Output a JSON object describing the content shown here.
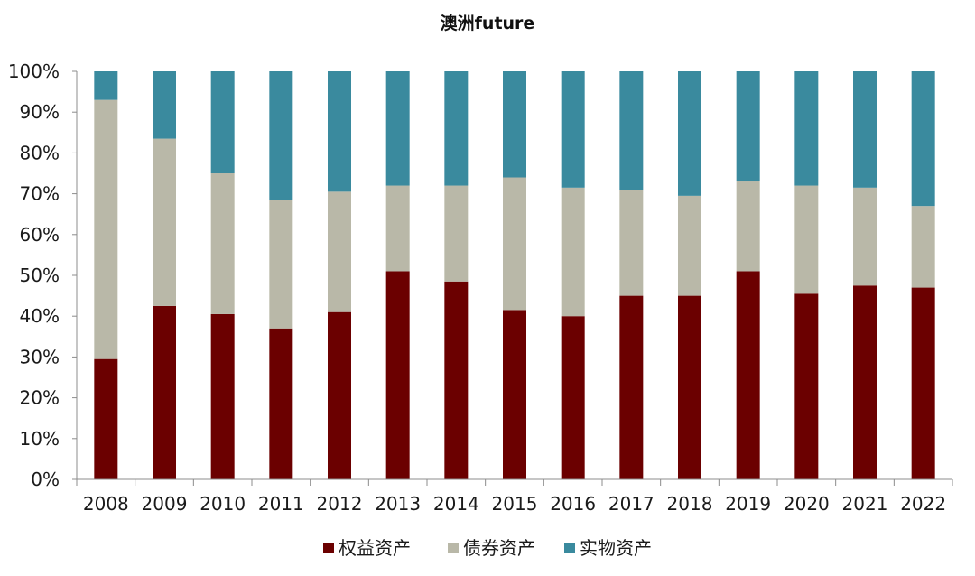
{
  "chart_data": {
    "type": "bar",
    "stacked": true,
    "title": "澳洲future",
    "xlabel": "",
    "ylabel": "",
    "ylim": [
      0,
      100
    ],
    "y_ticks": [
      "0%",
      "10%",
      "20%",
      "30%",
      "40%",
      "50%",
      "60%",
      "70%",
      "80%",
      "90%",
      "100%"
    ],
    "categories": [
      "2008",
      "2009",
      "2010",
      "2011",
      "2012",
      "2013",
      "2014",
      "2015",
      "2016",
      "2017",
      "2018",
      "2019",
      "2020",
      "2021",
      "2022"
    ],
    "series": [
      {
        "name": "权益资产",
        "color": "#6b0000",
        "values": [
          29.5,
          42.5,
          40.5,
          37,
          41,
          51,
          48.5,
          41.5,
          40,
          45,
          45,
          51,
          45.5,
          47.5,
          47
        ]
      },
      {
        "name": "债券资产",
        "color": "#b9b8a8",
        "values": [
          63.5,
          41,
          34.5,
          31.5,
          29.5,
          21,
          23.5,
          32.5,
          31.5,
          26,
          24.5,
          22,
          26.5,
          24,
          20
        ]
      },
      {
        "name": "实物资产",
        "color": "#3a8a9e",
        "values": [
          7,
          16.5,
          25,
          31.5,
          29.5,
          28,
          28,
          26,
          28.5,
          29,
          30.5,
          27,
          28,
          28.5,
          33
        ]
      }
    ],
    "grid": false,
    "legend_position": "bottom"
  }
}
